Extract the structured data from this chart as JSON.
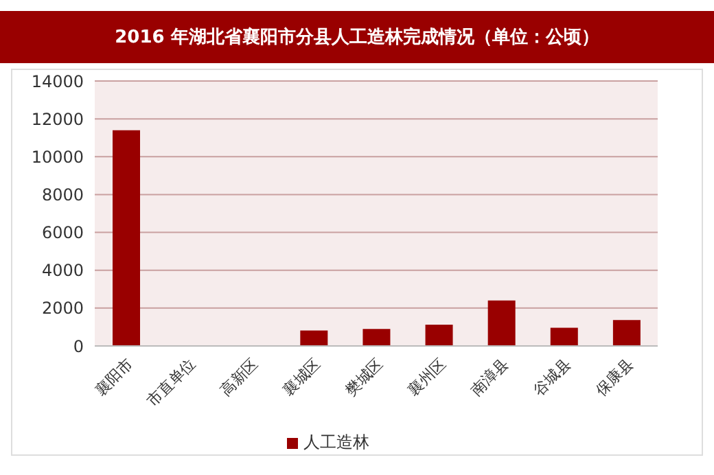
{
  "chart_data": {
    "type": "bar",
    "title": "2016 年湖北省襄阳市分县人工造林完成情况（单位：公顷）",
    "categories": [
      "襄阳市",
      "市直单位",
      "高新区",
      "襄城区",
      "樊城区",
      "襄州区",
      "南漳县",
      "谷城县",
      "保康县"
    ],
    "series": [
      {
        "name": "人工造林",
        "color": "#990000",
        "values": [
          11400,
          0,
          0,
          820,
          900,
          1120,
          2400,
          960,
          1370
        ]
      }
    ],
    "ylim": [
      0,
      14000
    ],
    "yticks": [
      0,
      2000,
      4000,
      6000,
      8000,
      10000,
      12000,
      14000
    ],
    "grid": "y",
    "legend": "bottom"
  }
}
